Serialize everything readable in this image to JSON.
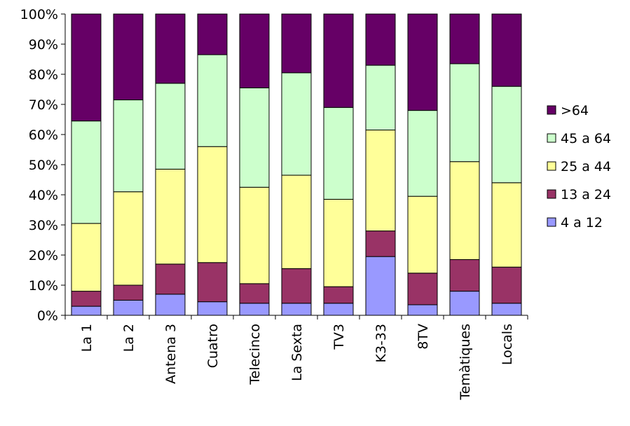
{
  "chart_data": {
    "type": "bar",
    "stacked": true,
    "percent": true,
    "categories": [
      "La 1",
      "La 2",
      "Antena 3",
      "Cuatro",
      "Telecinco",
      "La Sexta",
      "TV3",
      "K3-33",
      "8TV",
      "Temàtiques",
      "Locals"
    ],
    "series": [
      {
        "name": "4 a 12",
        "color": "#9999ff",
        "values": [
          3.0,
          5.0,
          7.0,
          4.5,
          4.0,
          4.0,
          4.0,
          19.5,
          3.5,
          8.0,
          4.0
        ]
      },
      {
        "name": "13 a 24",
        "color": "#993366",
        "values": [
          5.0,
          5.0,
          10.0,
          13.0,
          6.5,
          11.5,
          5.5,
          8.5,
          10.5,
          10.5,
          12.0
        ]
      },
      {
        "name": "25 a 44",
        "color": "#ffff99",
        "values": [
          22.5,
          31.0,
          31.5,
          38.5,
          32.0,
          31.0,
          29.0,
          33.5,
          25.5,
          32.5,
          28.0
        ]
      },
      {
        "name": "45 a 64",
        "color": "#ccffcc",
        "values": [
          34.0,
          30.5,
          28.5,
          30.5,
          33.0,
          34.0,
          30.5,
          21.5,
          28.5,
          32.5,
          32.0
        ]
      },
      {
        "name": ">64",
        "color": "#660066",
        "values": [
          35.5,
          28.5,
          23.0,
          13.5,
          24.5,
          19.5,
          31.0,
          17.0,
          32.0,
          16.5,
          24.0
        ]
      }
    ],
    "y_ticks": [
      "0%",
      "10%",
      "20%",
      "30%",
      "40%",
      "50%",
      "60%",
      "70%",
      "80%",
      "90%",
      "100%"
    ],
    "ylim": [
      0,
      100
    ],
    "legend_position": "right",
    "legend_order": [
      ">64",
      "45 a 64",
      "25 a 44",
      "13 a 24",
      "4 a 12"
    ],
    "grid": false
  }
}
